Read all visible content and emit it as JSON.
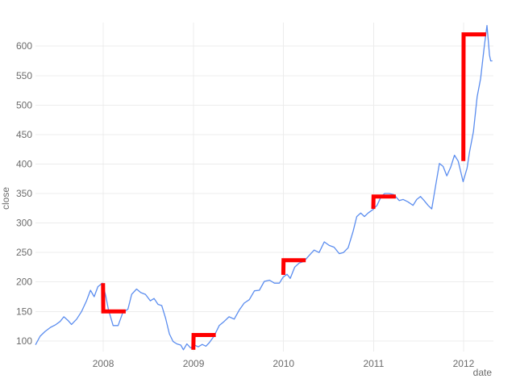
{
  "chart_data": {
    "type": "line",
    "title": "",
    "xlabel": "date",
    "ylabel": "close",
    "x_type": "date",
    "xlim": [
      "2007-04-01",
      "2012-05-01"
    ],
    "ylim": [
      82,
      640
    ],
    "y_ticks": [
      100,
      150,
      200,
      250,
      300,
      350,
      400,
      450,
      500,
      550,
      600
    ],
    "x_ticks": [
      {
        "value": "2008-01-01",
        "label": "2008"
      },
      {
        "value": "2009-01-01",
        "label": "2009"
      },
      {
        "value": "2010-01-01",
        "label": "2010"
      },
      {
        "value": "2011-01-01",
        "label": "2011"
      },
      {
        "value": "2012-01-01",
        "label": "2012"
      }
    ],
    "grid": true,
    "legend": "none",
    "colors": {
      "close": "#5b8def",
      "step": "#ff0000",
      "grid": "#ececec",
      "text": "#6b6b6b"
    },
    "series": [
      {
        "style": "line",
        "x": [
          "2007-04-02",
          "2007-04-20",
          "2007-05-10",
          "2007-06-01",
          "2007-06-20",
          "2007-07-10",
          "2007-07-25",
          "2007-08-10",
          "2007-08-25",
          "2007-09-15",
          "2007-10-05",
          "2007-10-25",
          "2007-11-10",
          "2007-11-25",
          "2007-12-10",
          "2007-12-28",
          "2008-01-10",
          "2008-01-22",
          "2008-02-10",
          "2008-03-01",
          "2008-03-20",
          "2008-04-10",
          "2008-04-25",
          "2008-05-15",
          "2008-06-01",
          "2008-06-20",
          "2008-07-10",
          "2008-07-25",
          "2008-08-10",
          "2008-08-25",
          "2008-09-10",
          "2008-09-25",
          "2008-10-10",
          "2008-10-25",
          "2008-11-10",
          "2008-11-21",
          "2008-12-05",
          "2008-12-20",
          "2009-01-05",
          "2009-01-20",
          "2009-02-05",
          "2009-02-20",
          "2009-03-06",
          "2009-03-25",
          "2009-04-15",
          "2009-05-05",
          "2009-05-25",
          "2009-06-15",
          "2009-07-05",
          "2009-07-25",
          "2009-08-15",
          "2009-09-05",
          "2009-09-25",
          "2009-10-15",
          "2009-11-05",
          "2009-11-25",
          "2009-12-15",
          "2009-12-30",
          "2010-01-15",
          "2010-01-28",
          "2010-02-15",
          "2010-03-05",
          "2010-03-25",
          "2010-04-15",
          "2010-05-05",
          "2010-05-25",
          "2010-06-15",
          "2010-07-05",
          "2010-07-25",
          "2010-08-15",
          "2010-09-01",
          "2010-09-20",
          "2010-10-10",
          "2010-10-25",
          "2010-11-10",
          "2010-11-25",
          "2010-12-10",
          "2010-12-30",
          "2011-01-15",
          "2011-02-01",
          "2011-02-15",
          "2011-03-05",
          "2011-03-25",
          "2011-04-15",
          "2011-05-01",
          "2011-05-20",
          "2011-06-10",
          "2011-06-25",
          "2011-07-10",
          "2011-07-25",
          "2011-08-10",
          "2011-08-25",
          "2011-09-10",
          "2011-09-25",
          "2011-10-10",
          "2011-10-25",
          "2011-11-10",
          "2011-11-25",
          "2011-12-10",
          "2011-12-30",
          "2012-01-15",
          "2012-01-25",
          "2012-02-10",
          "2012-02-25",
          "2012-03-10",
          "2012-03-25",
          "2012-04-05",
          "2012-04-10",
          "2012-04-15",
          "2012-04-20",
          "2012-04-25"
        ],
        "values": [
          94,
          108,
          116,
          123,
          127,
          133,
          141,
          135,
          128,
          137,
          150,
          168,
          186,
          175,
          192,
          198,
          178,
          153,
          126,
          126,
          148,
          154,
          179,
          188,
          182,
          179,
          168,
          172,
          162,
          160,
          138,
          112,
          99,
          95,
          93,
          85,
          95,
          88,
          93,
          90,
          94,
          91,
          97,
          108,
          126,
          133,
          141,
          137,
          152,
          164,
          170,
          185,
          186,
          201,
          203,
          198,
          198,
          208,
          213,
          206,
          225,
          232,
          235,
          245,
          254,
          250,
          268,
          262,
          259,
          248,
          250,
          258,
          286,
          311,
          317,
          311,
          317,
          323,
          330,
          345,
          350,
          350,
          348,
          338,
          340,
          336,
          330,
          340,
          345,
          338,
          330,
          324,
          364,
          401,
          396,
          380,
          395,
          415,
          405,
          370,
          393,
          420,
          455,
          514,
          545,
          600,
          635,
          610,
          585,
          575,
          575
        ]
      },
      {
        "style": "step",
        "x": [
          "2007-12-31",
          "2008-01-01",
          "2008-04-01"
        ],
        "values": [
          198,
          150,
          150
        ]
      },
      {
        "style": "step",
        "x": [
          "2008-12-31",
          "2009-01-01",
          "2009-04-01"
        ],
        "values": [
          85,
          110,
          110
        ]
      },
      {
        "style": "step",
        "x": [
          "2009-12-31",
          "2010-01-01",
          "2010-04-01"
        ],
        "values": [
          212,
          237,
          237
        ]
      },
      {
        "style": "step",
        "x": [
          "2010-12-31",
          "2011-01-01",
          "2011-04-01"
        ],
        "values": [
          324,
          345,
          345
        ]
      },
      {
        "style": "step",
        "x": [
          "2011-12-31",
          "2012-01-01",
          "2012-04-01"
        ],
        "values": [
          405,
          620,
          620
        ]
      }
    ]
  }
}
